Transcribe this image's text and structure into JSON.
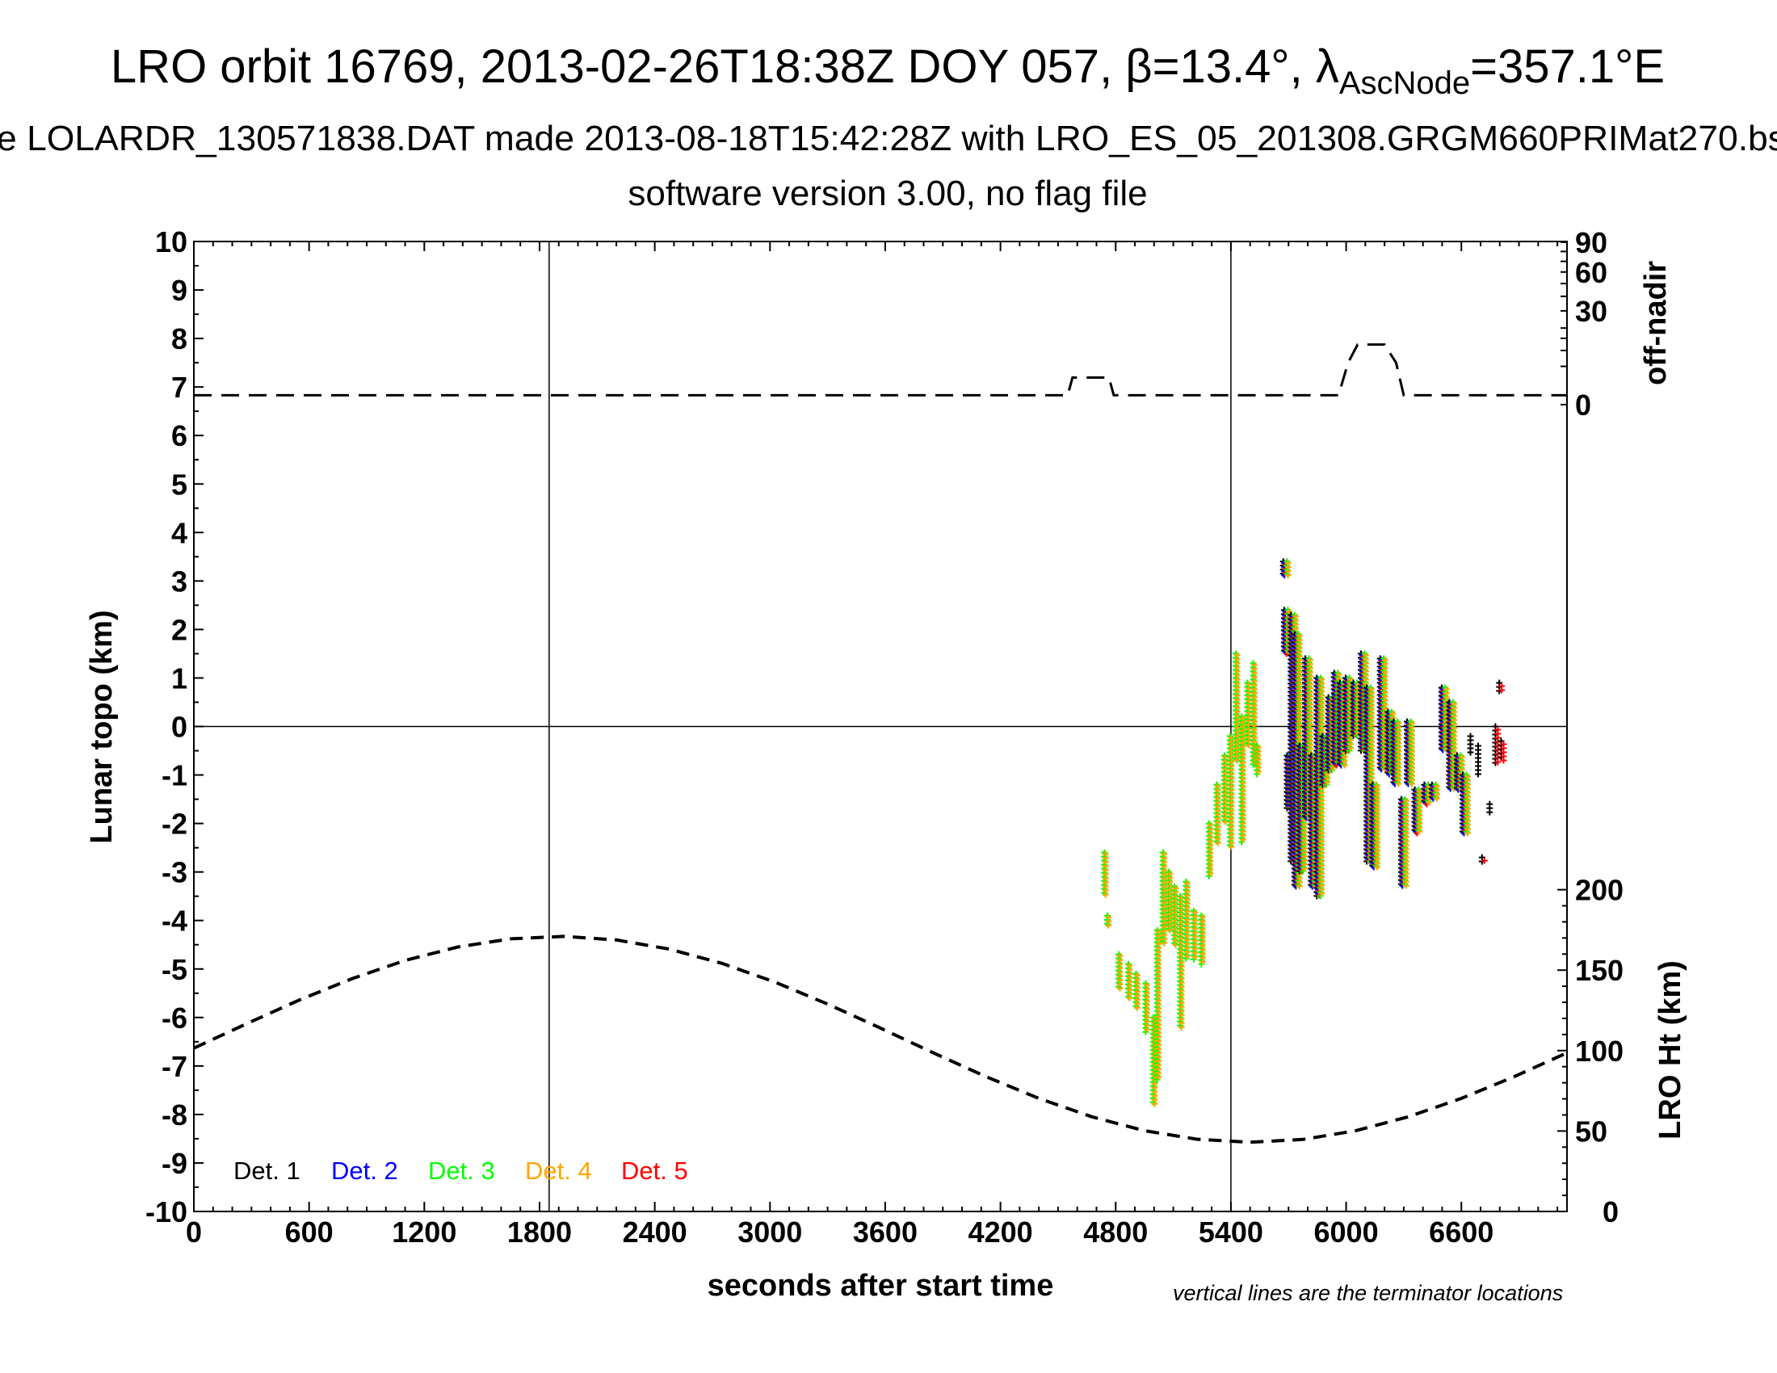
{
  "title": {
    "main_prefix": "LRO orbit 16769, 2013-02-26T18:38Z DOY 057, β=13.4°, λ",
    "main_sub": "AscNode",
    "main_suffix": "=357.1°E",
    "line2": "e LOLARDR_130571838.DAT made 2013-08-18T15:42:28Z with LRO_ES_05_201308.GRGM660PRIMat270.bs",
    "line3": "software version 3.00, no flag file"
  },
  "chart_data": {
    "type": "scatter",
    "xlabel": "seconds after start time",
    "ylabel_left": "Lunar topo (km)",
    "ylabel_right_top": "off-nadir",
    "ylabel_right_bottom": "LRO Ht (km)",
    "note": "vertical lines are the terminator locations",
    "xlim": [
      0,
      7150
    ],
    "ylim": [
      -10,
      10
    ],
    "x_ticks": [
      "0",
      "600",
      "1200",
      "1800",
      "2400",
      "3000",
      "3600",
      "4200",
      "4800",
      "5400",
      "6000",
      "6600"
    ],
    "y_ticks": [
      "10",
      "9",
      "8",
      "7",
      "6",
      "5",
      "4",
      "3",
      "2",
      "1",
      "0",
      "-1",
      "-2",
      "-3",
      "-4",
      "-5",
      "-6",
      "-7",
      "-8",
      "-9",
      "-10"
    ],
    "offnadir_ticks": [
      "90",
      "60",
      "30",
      "0"
    ],
    "height_ticks": [
      "200",
      "150",
      "100",
      "50",
      "0"
    ],
    "terminators": [
      1850,
      5400
    ],
    "legend": [
      {
        "label": "Det. 1",
        "color": "#000000"
      },
      {
        "label": "Det. 2",
        "color": "#0000ff"
      },
      {
        "label": "Det. 3",
        "color": "#00ff00"
      },
      {
        "label": "Det. 4",
        "color": "#ffa500"
      },
      {
        "label": "Det. 5",
        "color": "#ff0000"
      }
    ],
    "lro_height_km": [
      [
        0,
        101.5
      ],
      [
        275,
        116.7
      ],
      [
        550,
        131.5
      ],
      [
        825,
        144.8
      ],
      [
        1100,
        156.0
      ],
      [
        1375,
        164.4
      ],
      [
        1650,
        169.5
      ],
      [
        1925,
        171
      ],
      [
        2200,
        168.8
      ],
      [
        2475,
        163.1
      ],
      [
        2750,
        154.2
      ],
      [
        3025,
        142.6
      ],
      [
        3300,
        128.9
      ],
      [
        3575,
        114.0
      ],
      [
        3850,
        98.6
      ],
      [
        4125,
        83.8
      ],
      [
        4400,
        70.3
      ],
      [
        4675,
        58.9
      ],
      [
        4950,
        50.2
      ],
      [
        5225,
        44.9
      ],
      [
        5500,
        43
      ],
      [
        5775,
        44.8
      ],
      [
        6050,
        50.2
      ],
      [
        6325,
        58.9
      ],
      [
        6600,
        70.3
      ],
      [
        6875,
        83.8
      ],
      [
        7150,
        98.6
      ]
    ],
    "off_nadir_deg": [
      [
        0,
        0.3
      ],
      [
        4550,
        0.3
      ],
      [
        4575,
        2.5
      ],
      [
        4765,
        2.5
      ],
      [
        4790,
        0.3
      ],
      [
        5960,
        0.3
      ],
      [
        6010,
        6
      ],
      [
        6060,
        12.3
      ],
      [
        6200,
        12.3
      ],
      [
        6260,
        6
      ],
      [
        6300,
        0.3
      ],
      [
        7150,
        0.3
      ]
    ],
    "topo_columns": {
      "columns": [
        "t_sec",
        "min_km",
        "max_km",
        "detectors"
      ],
      "rows": [
        [
          4735,
          -3.5,
          -2.6,
          "34"
        ],
        [
          4750,
          -4.1,
          -3.9,
          "34"
        ],
        [
          4810,
          -5.4,
          -4.7,
          "34"
        ],
        [
          4860,
          -5.6,
          -4.9,
          "34"
        ],
        [
          4900,
          -5.8,
          -5.1,
          "34"
        ],
        [
          4950,
          -6.3,
          -5.3,
          "34"
        ],
        [
          4990,
          -7.8,
          -6.0,
          "34"
        ],
        [
          5010,
          -7.3,
          -4.2,
          "34"
        ],
        [
          5040,
          -4.5,
          -2.6,
          "34"
        ],
        [
          5070,
          -4.2,
          -3.0,
          "34"
        ],
        [
          5100,
          -4.5,
          -3.3,
          "34"
        ],
        [
          5130,
          -6.2,
          -3.5,
          "34"
        ],
        [
          5160,
          -4.8,
          -3.2,
          "34"
        ],
        [
          5200,
          -4.8,
          -3.8,
          "34"
        ],
        [
          5240,
          -4.9,
          -3.9,
          "34"
        ],
        [
          5280,
          -3.1,
          -2.0,
          "34"
        ],
        [
          5320,
          -2.4,
          -1.2,
          "34"
        ],
        [
          5360,
          -2.0,
          -0.6,
          "34"
        ],
        [
          5390,
          -2.5,
          -0.2,
          "34"
        ],
        [
          5420,
          -0.7,
          1.5,
          "34"
        ],
        [
          5450,
          -2.4,
          0.2,
          "34"
        ],
        [
          5480,
          -0.4,
          0.9,
          "34"
        ],
        [
          5510,
          -0.8,
          1.3,
          "34"
        ],
        [
          5530,
          -1.0,
          -0.4,
          "34"
        ],
        [
          5685,
          3.1,
          3.4,
          "12345"
        ],
        [
          5690,
          1.5,
          2.4,
          "12345"
        ],
        [
          5705,
          -1.7,
          -0.6,
          "12345"
        ],
        [
          5725,
          -2.8,
          2.3,
          "12345"
        ],
        [
          5745,
          -3.3,
          1.9,
          "12345"
        ],
        [
          5770,
          -3.0,
          -0.4,
          "12345"
        ],
        [
          5800,
          -1.9,
          1.4,
          "12345"
        ],
        [
          5830,
          -3.3,
          -0.6,
          "12345"
        ],
        [
          5860,
          -3.5,
          1.0,
          "12345"
        ],
        [
          5890,
          -1.2,
          -0.2,
          "12345"
        ],
        [
          5920,
          -0.9,
          0.6,
          "12345"
        ],
        [
          5950,
          -0.8,
          1.1,
          "12345"
        ],
        [
          5980,
          -0.8,
          0.9,
          "12345"
        ],
        [
          6010,
          -0.5,
          1.0,
          "12345"
        ],
        [
          6050,
          -0.2,
          0.9,
          "12345"
        ],
        [
          6090,
          -0.5,
          1.5,
          "12345"
        ],
        [
          6120,
          -2.8,
          0.8,
          "12345"
        ],
        [
          6150,
          -2.9,
          -1.2,
          "12345"
        ],
        [
          6190,
          -0.9,
          1.4,
          "12345"
        ],
        [
          6230,
          -1.0,
          0.3,
          "12345"
        ],
        [
          6260,
          -1.2,
          0.1,
          "12345"
        ],
        [
          6300,
          -3.3,
          -1.5,
          "12345"
        ],
        [
          6330,
          -1.2,
          0.1,
          "12345"
        ],
        [
          6370,
          -2.2,
          -1.3,
          "12345"
        ],
        [
          6420,
          -1.6,
          -1.2,
          "12345"
        ],
        [
          6460,
          -1.5,
          -1.2,
          "12345"
        ],
        [
          6510,
          -0.5,
          0.8,
          "12345"
        ],
        [
          6550,
          -1.3,
          0.5,
          "12345"
        ],
        [
          6590,
          -1.3,
          -0.6,
          "12345"
        ],
        [
          6620,
          -2.2,
          -1.0,
          "12345"
        ],
        [
          6660,
          -0.6,
          -0.2,
          "1"
        ],
        [
          6700,
          -1.0,
          -0.4,
          "1"
        ],
        [
          6720,
          -2.8,
          -2.7,
          "15"
        ],
        [
          6760,
          -1.8,
          -1.6,
          "1"
        ],
        [
          6790,
          -0.8,
          0.0,
          "15"
        ],
        [
          6810,
          0.7,
          0.9,
          "15"
        ],
        [
          6820,
          -0.7,
          -0.3,
          "15"
        ]
      ]
    }
  }
}
